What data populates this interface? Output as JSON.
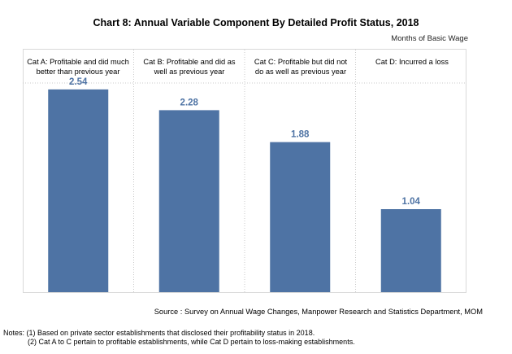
{
  "chart_data": {
    "type": "bar",
    "title": "Chart 8: Annual Variable Component By Detailed Profit Status, 2018",
    "ylabel": "Months of Basic Wage",
    "categories": [
      "Cat A: Profitable and did much better than previous year",
      "Cat B: Profitable and did as well as previous year",
      "Cat C: Profitable but did not do as well as previous year",
      "Cat D: Incurred a loss"
    ],
    "values": [
      2.54,
      2.28,
      1.88,
      1.04
    ],
    "value_labels": [
      "2.54",
      "2.28",
      "1.88",
      "1.04"
    ],
    "ylim": [
      0,
      2.6
    ],
    "bar_color": "#4e73a4",
    "label_color": "#4e73a4",
    "grid": false,
    "legend": "none"
  },
  "source": "Source : Survey on Annual Wage Changes, Manpower Research and Statistics Department, MOM",
  "notes": {
    "line1": "Notes: (1) Based on private sector establishments that disclosed their profitability status in 2018.",
    "line2": "(2) Cat A to C pertain to profitable establishments, while Cat D pertain to loss-making establishments."
  }
}
